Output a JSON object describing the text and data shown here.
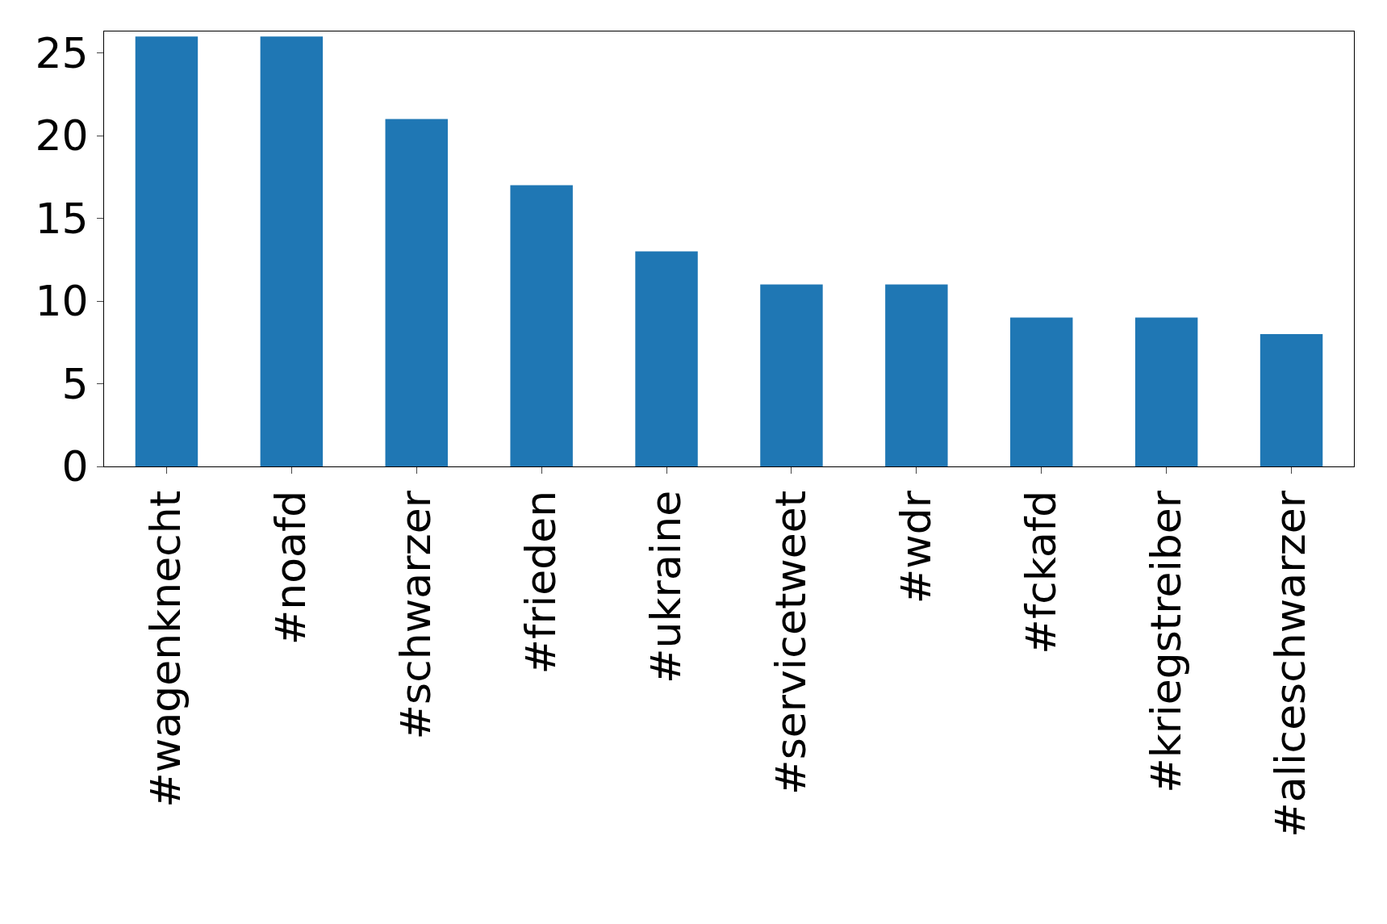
{
  "chart_data": {
    "type": "bar",
    "categories": [
      "#wagenknecht",
      "#noafd",
      "#schwarzer",
      "#frieden",
      "#ukraine",
      "#servicetweet",
      "#wdr",
      "#fckafd",
      "#kriegstreiber",
      "#aliceschwarzer"
    ],
    "values": [
      26,
      26,
      21,
      17,
      13,
      11,
      11,
      9,
      9,
      8
    ],
    "color": "#1f77b4",
    "ylim": [
      0,
      26.3
    ],
    "yticks": [
      0,
      5,
      10,
      15,
      20,
      25
    ],
    "grid": false,
    "legend": false
  }
}
